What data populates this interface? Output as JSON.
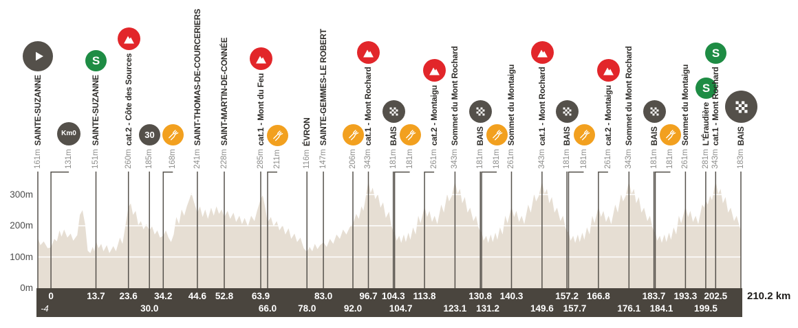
{
  "race_profile": {
    "total_distance_label": "210.2 km",
    "y_axis": [
      {
        "label": "300m",
        "m": 300
      },
      {
        "label": "200m",
        "m": 200
      },
      {
        "label": "100m",
        "m": 100
      },
      {
        "label": "0m",
        "m": 0
      }
    ],
    "colors": {
      "dark": "#54504a",
      "red": "#e2262a",
      "green": "#1e8c44",
      "orange": "#f2a01f",
      "bar": "#4a453e",
      "profile_fill": "#e6ded3",
      "grid": "#ffffff",
      "line": "#55514b",
      "name_text": "#2e2c29",
      "elev_text": "#8d8d8b",
      "axis_text": "#4c4c4c",
      "total_text": "#1e1c1a"
    },
    "waypoints": [
      {
        "km": -4,
        "dist_label": "-4",
        "row": 2,
        "italic": true,
        "num_dx": 10,
        "elev": "161m",
        "name": "SAINTE-SUZANNE",
        "icon": "start"
      },
      {
        "km": 0,
        "dist_label": "0",
        "row": 1,
        "elev": "131m",
        "name": "",
        "icon": "km0",
        "icon_text": "Km0",
        "label_dx": 26
      },
      {
        "km": 13.7,
        "dist_label": "13.7",
        "row": 1,
        "elev": "151m",
        "name": "SAINTE-SUZANNE",
        "icon": "sprint",
        "icon_text": "S"
      },
      {
        "km": 23.6,
        "dist_label": "23.6",
        "row": 1,
        "elev": "260m",
        "name": "cat.2 - Côte des Sources",
        "icon": "climb"
      },
      {
        "km": 30,
        "dist_label": "30.0",
        "row": 2,
        "elev": "185m",
        "name": "",
        "icon": "bonus30",
        "icon_text": "30"
      },
      {
        "km": 34.2,
        "dist_label": "34.2",
        "row": 1,
        "elev": "168m",
        "name": "",
        "icon": "feed",
        "label_dx": 14
      },
      {
        "km": 44.6,
        "dist_label": "44.6",
        "row": 1,
        "elev": "241m",
        "name": "SAINT-THOMAS-DE-COURCERIERS",
        "icon": ""
      },
      {
        "km": 52.8,
        "dist_label": "52.8",
        "row": 1,
        "elev": "228m",
        "name": "SAINT-MARTIN-DE-CONNÉE",
        "icon": ""
      },
      {
        "km": 63.9,
        "dist_label": "63.9",
        "row": 1,
        "elev": "285m",
        "name": "cat.1 - Mont du Feu",
        "icon": "climb"
      },
      {
        "km": 66,
        "dist_label": "66.0",
        "row": 2,
        "elev": "211m",
        "name": "",
        "icon": "feed",
        "label_dx": 14
      },
      {
        "km": 78,
        "dist_label": "78.0",
        "row": 2,
        "elev": "116m",
        "name": "ÉVRON",
        "icon": ""
      },
      {
        "km": 83,
        "dist_label": "83.0",
        "row": 1,
        "elev": "147m",
        "name": "SAINTE-GEMMES-LE ROBERT",
        "icon": ""
      },
      {
        "km": 92,
        "dist_label": "92.0",
        "row": 2,
        "elev": "206m",
        "name": "",
        "icon": "feed"
      },
      {
        "km": 96.7,
        "dist_label": "96.7",
        "row": 1,
        "elev": "343m",
        "name": "cat.1 - Mont Rochard",
        "icon": "climb"
      },
      {
        "km": 104.3,
        "dist_label": "104.3",
        "row": 1,
        "elev": "181m",
        "name": "BAIS",
        "icon": "checker"
      },
      {
        "km": 104.7,
        "dist_label": "104.7",
        "row": 2,
        "num_dx": 9,
        "elev": "181m",
        "name": "",
        "icon": "feed",
        "label_dx": 22
      },
      {
        "km": 113.8,
        "dist_label": "113.8",
        "row": 1,
        "elev": "261m",
        "name": "cat.2 - Montaigu",
        "icon": "climb",
        "label_dx": 14
      },
      {
        "km": 123.1,
        "dist_label": "123.1",
        "row": 2,
        "elev": "343m",
        "name": "Sommet du Mont Rochard",
        "icon": ""
      },
      {
        "km": 130.8,
        "dist_label": "130.8",
        "row": 1,
        "elev": "181m",
        "name": "BAIS",
        "icon": "checker"
      },
      {
        "km": 131.2,
        "dist_label": "131.2",
        "row": 2,
        "num_dx": 9,
        "elev": "181m",
        "name": "",
        "icon": "feed",
        "label_dx": 22
      },
      {
        "km": 140.3,
        "dist_label": "140.3",
        "row": 1,
        "elev": "261m",
        "name": "Sommet du Montaigu",
        "icon": ""
      },
      {
        "km": 149.6,
        "dist_label": "149.6",
        "row": 2,
        "elev": "343m",
        "name": "cat.1 - Mont Rochard",
        "icon": "climb"
      },
      {
        "km": 157.2,
        "dist_label": "157.2",
        "row": 1,
        "elev": "181m",
        "name": "BAIS",
        "icon": "checker"
      },
      {
        "km": 157.7,
        "dist_label": "157.7",
        "row": 2,
        "num_dx": 9,
        "elev": "181m",
        "name": "",
        "icon": "feed",
        "label_dx": 22
      },
      {
        "km": 166.8,
        "dist_label": "166.8",
        "row": 1,
        "elev": "261m",
        "name": "cat.2 - Montaigu",
        "icon": "climb",
        "label_dx": 14
      },
      {
        "km": 176.1,
        "dist_label": "176.1",
        "row": 2,
        "elev": "343m",
        "name": "Sommet du Mont Rochard",
        "icon": ""
      },
      {
        "km": 183.7,
        "dist_label": "183.7",
        "row": 1,
        "elev": "181m",
        "name": "BAIS",
        "icon": "checker"
      },
      {
        "km": 184.1,
        "dist_label": "184.1",
        "row": 2,
        "num_dx": 9,
        "elev": "181m",
        "name": "",
        "icon": "feed",
        "label_dx": 22
      },
      {
        "km": 193.3,
        "dist_label": "193.3",
        "row": 1,
        "elev": "261m",
        "name": "Sommet du Montaigu",
        "icon": ""
      },
      {
        "km": 199.5,
        "dist_label": "199.5",
        "row": 2,
        "elev": "281m",
        "name": "L'Éraudière",
        "icon": "sprint",
        "icon_text": "S"
      },
      {
        "km": 202.5,
        "dist_label": "202.5",
        "row": 1,
        "elev": "343m",
        "name": "cat.1 - Mont Rochard",
        "icon": "sprint",
        "icon_text": "S"
      },
      {
        "km": 210.2,
        "dist_label": "",
        "row": 1,
        "elev": "183m",
        "name": "BAIS",
        "icon": "finish"
      }
    ]
  },
  "chart_data": {
    "type": "area",
    "title": "",
    "xlabel": "",
    "ylabel": "",
    "x_unit": "km",
    "y_unit": "m",
    "xlim": [
      -4,
      210.2
    ],
    "ylim": [
      0,
      374
    ],
    "y_gridlines": [
      100,
      200,
      300
    ],
    "y_tick_labels": [
      "0m",
      "100m",
      "200m",
      "300m"
    ],
    "legend": [],
    "points": [
      [
        -4,
        161
      ],
      [
        -3.2,
        138
      ],
      [
        -2.2,
        150
      ],
      [
        -1,
        128
      ],
      [
        0,
        131
      ],
      [
        1,
        158
      ],
      [
        1.8,
        150
      ],
      [
        2.6,
        185
      ],
      [
        3.2,
        165
      ],
      [
        4,
        188
      ],
      [
        5,
        162
      ],
      [
        6,
        175
      ],
      [
        6.8,
        152
      ],
      [
        8,
        170
      ],
      [
        8.8,
        235
      ],
      [
        9.6,
        250
      ],
      [
        10.4,
        205
      ],
      [
        11.2,
        120
      ],
      [
        12,
        112
      ],
      [
        12.7,
        132
      ],
      [
        13.2,
        118
      ],
      [
        13.7,
        151
      ],
      [
        14.5,
        128
      ],
      [
        15.3,
        142
      ],
      [
        16,
        118
      ],
      [
        17,
        138
      ],
      [
        17.8,
        112
      ],
      [
        19,
        135
      ],
      [
        19.8,
        118
      ],
      [
        21,
        162
      ],
      [
        21.8,
        142
      ],
      [
        22.6,
        195
      ],
      [
        23.6,
        260
      ],
      [
        24.3,
        272
      ],
      [
        25,
        235
      ],
      [
        25.8,
        248
      ],
      [
        26.6,
        202
      ],
      [
        27.4,
        215
      ],
      [
        28.2,
        188
      ],
      [
        29,
        205
      ],
      [
        30,
        185
      ],
      [
        30.8,
        198
      ],
      [
        31.6,
        172
      ],
      [
        32.4,
        185
      ],
      [
        33.2,
        162
      ],
      [
        34.2,
        168
      ],
      [
        35,
        185
      ],
      [
        35.8,
        162
      ],
      [
        36.6,
        148
      ],
      [
        37.4,
        172
      ],
      [
        38.2,
        228
      ],
      [
        39,
        205
      ],
      [
        39.8,
        252
      ],
      [
        40.6,
        232
      ],
      [
        41.4,
        262
      ],
      [
        42.2,
        285
      ],
      [
        42.8,
        305
      ],
      [
        43.4,
        282
      ],
      [
        44.6,
        241
      ],
      [
        45.4,
        262
      ],
      [
        46.2,
        228
      ],
      [
        47,
        252
      ],
      [
        47.8,
        222
      ],
      [
        48.8,
        258
      ],
      [
        49.6,
        232
      ],
      [
        50.4,
        262
      ],
      [
        51.2,
        238
      ],
      [
        52,
        252
      ],
      [
        52.8,
        228
      ],
      [
        53.8,
        248
      ],
      [
        54.6,
        222
      ],
      [
        55.6,
        242
      ],
      [
        56.4,
        212
      ],
      [
        57.4,
        232
      ],
      [
        58.2,
        205
      ],
      [
        59,
        225
      ],
      [
        60,
        198
      ],
      [
        61,
        232
      ],
      [
        62,
        215
      ],
      [
        62.8,
        248
      ],
      [
        63.9,
        285
      ],
      [
        64.5,
        298
      ],
      [
        65.2,
        262
      ],
      [
        66,
        211
      ],
      [
        67,
        228
      ],
      [
        67.8,
        198
      ],
      [
        68.8,
        215
      ],
      [
        69.6,
        185
      ],
      [
        70.6,
        202
      ],
      [
        71.4,
        172
      ],
      [
        72.4,
        192
      ],
      [
        73.2,
        158
      ],
      [
        74.2,
        175
      ],
      [
        75,
        148
      ],
      [
        76,
        162
      ],
      [
        77,
        128
      ],
      [
        78,
        116
      ],
      [
        78.8,
        132
      ],
      [
        79.6,
        118
      ],
      [
        80.4,
        142
      ],
      [
        81.2,
        125
      ],
      [
        82,
        138
      ],
      [
        83,
        147
      ],
      [
        84,
        132
      ],
      [
        85,
        158
      ],
      [
        86,
        142
      ],
      [
        87,
        172
      ],
      [
        88,
        158
      ],
      [
        89,
        188
      ],
      [
        90,
        172
      ],
      [
        91,
        195
      ],
      [
        92,
        206
      ],
      [
        93,
        238
      ],
      [
        93.8,
        222
      ],
      [
        94.6,
        262
      ],
      [
        95.2,
        248
      ],
      [
        96.7,
        343
      ],
      [
        97.4,
        305
      ],
      [
        98,
        322
      ],
      [
        98.8,
        285
      ],
      [
        99.6,
        302
      ],
      [
        100.4,
        258
      ],
      [
        101.2,
        275
      ],
      [
        102,
        225
      ],
      [
        103,
        245
      ],
      [
        103.6,
        205
      ],
      [
        104.3,
        181
      ],
      [
        104.7,
        181
      ],
      [
        105.3,
        152
      ],
      [
        106.1,
        168
      ],
      [
        106.7,
        145
      ],
      [
        107.5,
        172
      ],
      [
        108.1,
        148
      ],
      [
        108.9,
        178
      ],
      [
        109.5,
        155
      ],
      [
        110.3,
        195
      ],
      [
        111.1,
        172
      ],
      [
        111.9,
        232
      ],
      [
        112.6,
        208
      ],
      [
        113.8,
        261
      ],
      [
        114.6,
        228
      ],
      [
        115.3,
        248
      ],
      [
        116.1,
        212
      ],
      [
        116.9,
        232
      ],
      [
        117.7,
        205
      ],
      [
        118.9,
        268
      ],
      [
        119.7,
        242
      ],
      [
        120.7,
        302
      ],
      [
        121.3,
        278
      ],
      [
        122.1,
        295
      ],
      [
        123.1,
        343
      ],
      [
        123.9,
        302
      ],
      [
        124.6,
        318
      ],
      [
        125.3,
        272
      ],
      [
        126.1,
        292
      ],
      [
        126.9,
        242
      ],
      [
        127.7,
        258
      ],
      [
        128.7,
        215
      ],
      [
        129.5,
        232
      ],
      [
        130.2,
        196
      ],
      [
        130.8,
        181
      ],
      [
        131.2,
        181
      ],
      [
        131.8,
        152
      ],
      [
        132.6,
        168
      ],
      [
        133.2,
        145
      ],
      [
        134,
        172
      ],
      [
        134.6,
        148
      ],
      [
        135.4,
        178
      ],
      [
        136,
        155
      ],
      [
        136.8,
        195
      ],
      [
        137.6,
        172
      ],
      [
        138.4,
        232
      ],
      [
        139.1,
        208
      ],
      [
        140.3,
        261
      ],
      [
        141.1,
        228
      ],
      [
        141.8,
        248
      ],
      [
        142.6,
        212
      ],
      [
        143.4,
        232
      ],
      [
        144.2,
        205
      ],
      [
        145.4,
        268
      ],
      [
        146.2,
        242
      ],
      [
        147.2,
        302
      ],
      [
        147.8,
        278
      ],
      [
        148.6,
        295
      ],
      [
        149.6,
        343
      ],
      [
        150.4,
        302
      ],
      [
        151.1,
        318
      ],
      [
        151.8,
        272
      ],
      [
        152.6,
        292
      ],
      [
        153.4,
        242
      ],
      [
        154.2,
        258
      ],
      [
        155.2,
        215
      ],
      [
        156,
        232
      ],
      [
        156.7,
        196
      ],
      [
        157.2,
        181
      ],
      [
        157.7,
        181
      ],
      [
        158.3,
        152
      ],
      [
        159.1,
        168
      ],
      [
        159.7,
        145
      ],
      [
        160.5,
        172
      ],
      [
        161.1,
        148
      ],
      [
        161.9,
        178
      ],
      [
        162.5,
        155
      ],
      [
        163.3,
        195
      ],
      [
        164.1,
        172
      ],
      [
        164.9,
        232
      ],
      [
        165.6,
        208
      ],
      [
        166.8,
        261
      ],
      [
        167.6,
        228
      ],
      [
        168.3,
        248
      ],
      [
        169.1,
        212
      ],
      [
        169.9,
        232
      ],
      [
        170.7,
        205
      ],
      [
        171.9,
        268
      ],
      [
        172.7,
        242
      ],
      [
        173.7,
        302
      ],
      [
        174.3,
        278
      ],
      [
        175.1,
        295
      ],
      [
        176.1,
        343
      ],
      [
        176.9,
        302
      ],
      [
        177.6,
        318
      ],
      [
        178.3,
        272
      ],
      [
        179.1,
        292
      ],
      [
        179.9,
        242
      ],
      [
        180.7,
        258
      ],
      [
        181.7,
        215
      ],
      [
        182.5,
        232
      ],
      [
        183.2,
        196
      ],
      [
        183.7,
        181
      ],
      [
        184.1,
        181
      ],
      [
        184.7,
        152
      ],
      [
        185.5,
        168
      ],
      [
        186.1,
        145
      ],
      [
        186.9,
        172
      ],
      [
        187.5,
        148
      ],
      [
        188.3,
        178
      ],
      [
        188.9,
        155
      ],
      [
        189.7,
        195
      ],
      [
        190.5,
        172
      ],
      [
        191.3,
        232
      ],
      [
        192,
        208
      ],
      [
        193.3,
        261
      ],
      [
        194.1,
        228
      ],
      [
        194.8,
        248
      ],
      [
        195.6,
        212
      ],
      [
        196.4,
        232
      ],
      [
        197.2,
        205
      ],
      [
        198.4,
        268
      ],
      [
        199,
        258
      ],
      [
        199.5,
        281
      ],
      [
        200.1,
        268
      ],
      [
        200.8,
        296
      ],
      [
        201.4,
        282
      ],
      [
        202.5,
        343
      ],
      [
        203.3,
        302
      ],
      [
        204,
        318
      ],
      [
        204.7,
        272
      ],
      [
        205.5,
        292
      ],
      [
        206.3,
        242
      ],
      [
        207.1,
        258
      ],
      [
        208.1,
        215
      ],
      [
        208.9,
        232
      ],
      [
        209.6,
        205
      ],
      [
        210.2,
        183
      ]
    ]
  }
}
